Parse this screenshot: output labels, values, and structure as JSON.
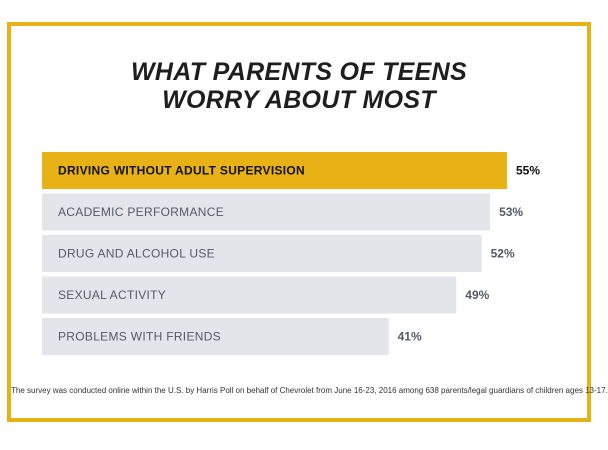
{
  "title_lines": [
    "WHAT PARENTS OF TEENS",
    "WORRY ABOUT MOST"
  ],
  "footnote": "The survey was conducted online within the U.S. by Harris Poll on behalf of Chevrolet from June 16-23, 2016 among 638 parents/legal guardians of children ages 13-17.",
  "colors": {
    "border": "#e8b217",
    "highlight_bar": "#e8b217",
    "bar": "#e4e5ea",
    "highlight_text": "#111111",
    "text": "#555a66",
    "value_text": "#555a66"
  },
  "chart_data": {
    "type": "bar",
    "orientation": "horizontal",
    "categories": [
      "DRIVING WITHOUT ADULT SUPERVISION",
      "ACADEMIC PERFORMANCE",
      "DRUG AND ALCOHOL USE",
      "SEXUAL ACTIVITY",
      "PROBLEMS WITH FRIENDS"
    ],
    "values": [
      55,
      53,
      52,
      49,
      41
    ],
    "value_labels": [
      "55%",
      "53%",
      "52%",
      "49%",
      "41%"
    ],
    "highlight_index": 0,
    "xlim": [
      0,
      55
    ],
    "grid": false
  }
}
